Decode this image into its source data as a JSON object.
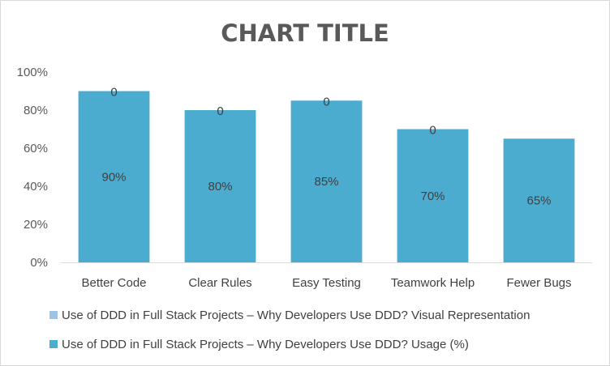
{
  "chart_data": {
    "type": "bar",
    "title": "CHART TITLE",
    "xlabel": "",
    "ylabel": "",
    "categories": [
      "Better Code",
      "Clear Rules",
      "Easy Testing",
      "Teamwork Help",
      "Fewer Bugs"
    ],
    "ylim": [
      0,
      100
    ],
    "y_ticks": [
      "0%",
      "20%",
      "40%",
      "60%",
      "80%",
      "100%"
    ],
    "grid": false,
    "legend_position": "bottom",
    "series": [
      {
        "name": "Use of DDD in Full Stack Projects – Why Developers Use DDD? Visual Representation",
        "values": [
          0,
          0,
          0,
          0,
          0
        ],
        "data_labels": [
          "0",
          "0",
          "0",
          "0",
          ""
        ],
        "color": "#9dc3e6"
      },
      {
        "name": "Use of DDD in Full Stack Projects – Why Developers Use DDD? Usage (%)",
        "values": [
          90,
          80,
          85,
          70,
          65
        ],
        "data_labels": [
          "90%",
          "80%",
          "85%",
          "70%",
          "65%"
        ],
        "color": "#4bacd0"
      }
    ]
  },
  "colors": {
    "axis": "#d9d9d9",
    "text": "#404040",
    "title": "#595959"
  }
}
